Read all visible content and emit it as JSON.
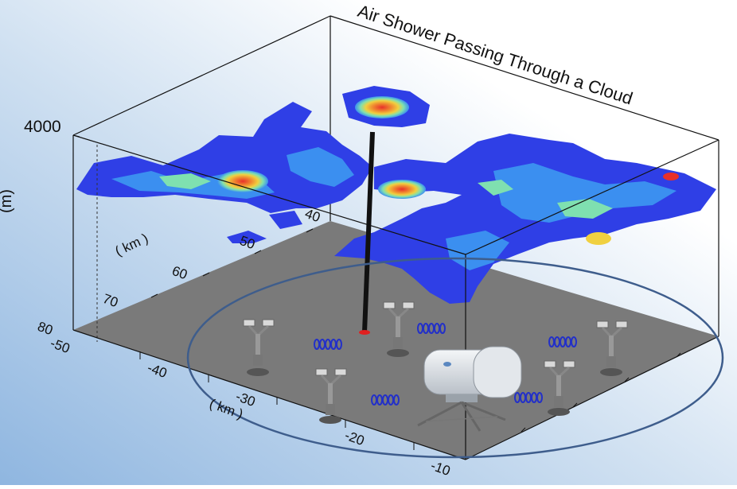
{
  "title": "Air Shower Passing Through a Cloud",
  "vertical_axis": {
    "label": "(m)",
    "tick": "4000"
  },
  "depth_axis": {
    "label": "( km )",
    "ticks": [
      "40",
      "50",
      "60",
      "70",
      "80"
    ]
  },
  "width_axis": {
    "label": "( km )",
    "ticks": [
      "-50",
      "-40",
      "-30",
      "-20",
      "-10"
    ]
  },
  "colors": {
    "background_gradient_top": "#dde9f5",
    "background_gradient_left": "#8fb6e0",
    "floor": "#7a7a7a",
    "cloud_low": "#2f3fe6",
    "cloud_mid": "#3b8ff0",
    "cloud_high": "#7fe0b0",
    "cloud_peak": "#f0d040",
    "cloud_core": "#e8302a",
    "shower_core": "#111111",
    "array_ellipse": "#3e5d8c",
    "detector_signal": "#2330c8"
  },
  "instruments": {
    "surface_detectors": [
      "detector",
      "detector",
      "detector",
      "detector",
      "detector"
    ],
    "telescope": "fluorescence-telescope"
  }
}
